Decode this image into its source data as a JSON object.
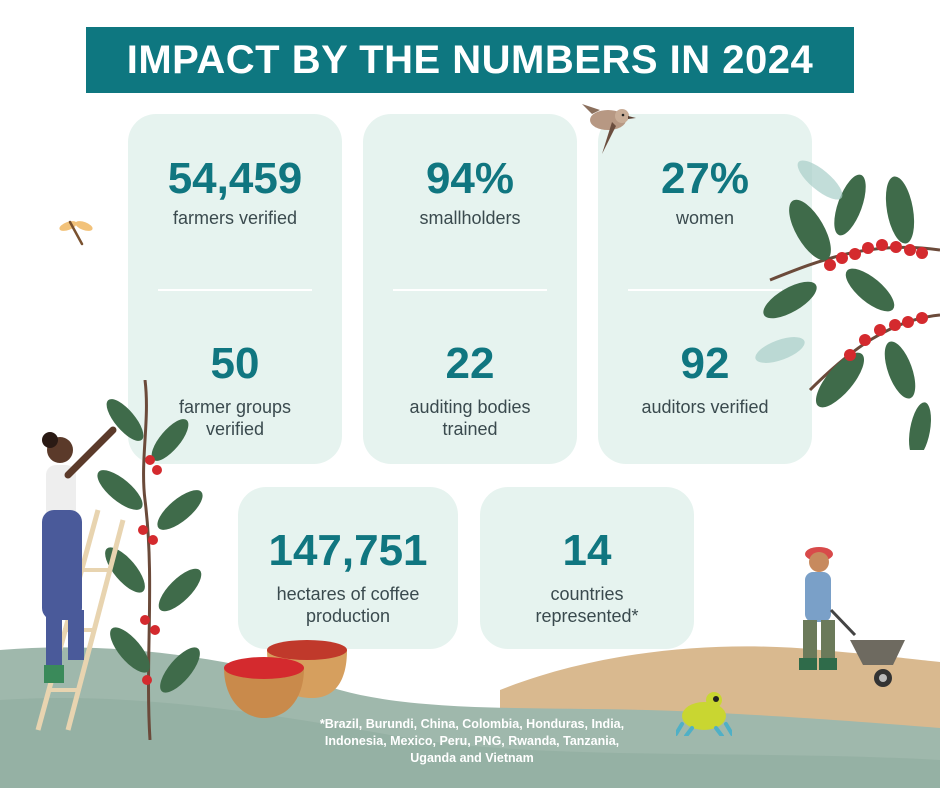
{
  "title": "IMPACT BY THE NUMBERS IN 2024",
  "stats": [
    {
      "value": "54,459",
      "label": "farmers verified"
    },
    {
      "value": "94%",
      "label": "smallholders"
    },
    {
      "value": "27%",
      "label": "women"
    },
    {
      "value": "50",
      "label_line1": "farmer groups",
      "label_line2": "verified"
    },
    {
      "value": "22",
      "label_line1": "auditing bodies",
      "label_line2": "trained"
    },
    {
      "value": "92",
      "label": "auditors verified"
    },
    {
      "value": "147,751",
      "label_line1": "hectares of coffee",
      "label_line2": "production"
    },
    {
      "value": "14",
      "label_line1": "countries",
      "label_line2": "represented*"
    }
  ],
  "footnote": {
    "line1": "*Brazil, Burundi, China, Colombia, Honduras, India,",
    "line2": "Indonesia, Mexico, Peru, PNG, Rwanda, Tanzania,",
    "line3": "Uganda and Vietnam"
  },
  "colors": {
    "accent": "#0e7780",
    "card": "#e6f3ef",
    "ground_green": "#9fb8ac",
    "ground_tan": "#d9b98f",
    "coffee_cherry": "#d42a2e",
    "leaf": "#3f6b4a"
  }
}
